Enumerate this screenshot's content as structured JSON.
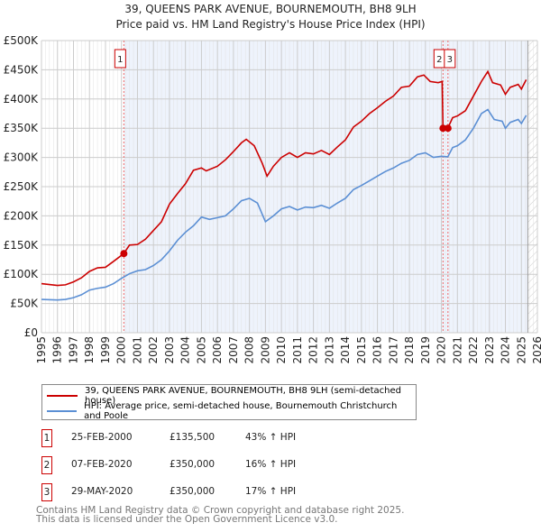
{
  "header": {
    "title": "39, QUEENS PARK AVENUE, BOURNEMOUTH, BH8 9LH",
    "subtitle": "Price paid vs. HM Land Registry's House Price Index (HPI)"
  },
  "chart_data": {
    "type": "line",
    "title": "39, QUEENS PARK AVENUE, BOURNEMOUTH, BH8 9LH",
    "subtitle": "Price paid vs. HM Land Registry's House Price Index (HPI)",
    "xlim": [
      1995,
      2026
    ],
    "ylim": [
      0,
      500
    ],
    "y_ticks": [
      {
        "v": 0,
        "label": "£0"
      },
      {
        "v": 50,
        "label": "£50K"
      },
      {
        "v": 100,
        "label": "£100K"
      },
      {
        "v": 150,
        "label": "£150K"
      },
      {
        "v": 200,
        "label": "£200K"
      },
      {
        "v": 250,
        "label": "£250K"
      },
      {
        "v": 300,
        "label": "£300K"
      },
      {
        "v": 350,
        "label": "£350K"
      },
      {
        "v": 400,
        "label": "£400K"
      },
      {
        "v": 450,
        "label": "£450K"
      },
      {
        "v": 500,
        "label": "£500K"
      }
    ],
    "x_ticks": [
      "1995",
      "1996",
      "1997",
      "1998",
      "1999",
      "2000",
      "2001",
      "2002",
      "2003",
      "2004",
      "2005",
      "2006",
      "2007",
      "2008",
      "2009",
      "2010",
      "2011",
      "2012",
      "2013",
      "2014",
      "2015",
      "2016",
      "2017",
      "2018",
      "2019",
      "2020",
      "2021",
      "2022",
      "2023",
      "2024",
      "2025",
      "2026"
    ],
    "grid": true,
    "series": [
      {
        "name": "39, QUEENS PARK AVENUE, BOURNEMOUTH, BH8 9LH (semi-detached house)",
        "color": "#cc0000",
        "x": [
          1995,
          1996,
          1996.5,
          1997,
          1997.5,
          1998,
          1998.5,
          1999,
          1999.5,
          2000.15,
          2000.5,
          2001,
          2001.5,
          2002,
          2002.5,
          2003,
          2003.5,
          2004,
          2004.5,
          2005,
          2005.3,
          2006,
          2006.5,
          2007,
          2007.5,
          2007.8,
          2008.3,
          2008.8,
          2009.1,
          2009.5,
          2010,
          2010.5,
          2011,
          2011.5,
          2012,
          2012.5,
          2013,
          2013.5,
          2014,
          2014.5,
          2015,
          2015.5,
          2016,
          2016.5,
          2017,
          2017.5,
          2018,
          2018.5,
          2018.9,
          2019.3,
          2019.8,
          2020.05,
          2020.1,
          2020.4,
          2020.7,
          2021,
          2021.5,
          2022,
          2022.5,
          2022.9,
          2023.2,
          2023.7,
          2024,
          2024.3,
          2024.8,
          2025,
          2025.3
        ],
        "y": [
          84,
          81,
          82,
          87,
          94,
          105,
          111,
          112,
          122,
          135.5,
          150,
          151,
          160,
          175,
          190,
          220,
          238,
          255,
          278,
          282,
          277,
          285,
          296,
          310,
          325,
          331,
          320,
          290,
          268,
          285,
          300,
          308,
          300,
          308,
          306,
          312,
          305,
          318,
          330,
          352,
          362,
          375,
          385,
          396,
          405,
          420,
          422,
          438,
          441,
          430,
          428,
          430,
          350,
          350,
          368,
          371,
          380,
          405,
          430,
          447,
          428,
          424,
          408,
          420,
          425,
          417,
          433
        ]
      },
      {
        "name": "HPI: Average price, semi-detached house, Bournemouth Christchurch and Poole",
        "color": "#5b8fd4",
        "x": [
          1995,
          1996,
          1996.5,
          1997,
          1997.5,
          1998,
          1998.5,
          1999,
          1999.5,
          2000,
          2000.5,
          2001,
          2001.5,
          2002,
          2002.5,
          2003,
          2003.5,
          2004,
          2004.5,
          2005,
          2005.5,
          2006,
          2006.5,
          2007,
          2007.5,
          2008,
          2008.5,
          2009,
          2009.5,
          2010,
          2010.5,
          2011,
          2011.5,
          2012,
          2012.5,
          2013,
          2013.5,
          2014,
          2014.5,
          2015,
          2015.5,
          2016,
          2016.5,
          2017,
          2017.5,
          2018,
          2018.5,
          2019,
          2019.5,
          2020,
          2020.4,
          2020.7,
          2021,
          2021.5,
          2022,
          2022.5,
          2022.9,
          2023.3,
          2023.8,
          2024,
          2024.3,
          2024.8,
          2025,
          2025.3
        ],
        "y": [
          57,
          56,
          57,
          60,
          65,
          73,
          76,
          78,
          84,
          93,
          101,
          106,
          108,
          115,
          125,
          140,
          158,
          172,
          183,
          198,
          194,
          197,
          200,
          212,
          226,
          230,
          222,
          190,
          200,
          212,
          216,
          210,
          215,
          214,
          218,
          213,
          222,
          230,
          245,
          252,
          260,
          268,
          276,
          282,
          290,
          295,
          305,
          308,
          300,
          302,
          301,
          317,
          320,
          330,
          350,
          375,
          382,
          365,
          362,
          350,
          360,
          365,
          358,
          372
        ]
      }
    ],
    "sales": [
      {
        "id": "1",
        "date": "25-FEB-2000",
        "price": "£135,500",
        "hpi": "43% ↑ HPI",
        "x": 2000.15,
        "y": 135.5
      },
      {
        "id": "2",
        "date": "07-FEB-2020",
        "price": "£350,000",
        "hpi": "16% ↑ HPI",
        "x": 2020.1,
        "y": 350
      },
      {
        "id": "3",
        "date": "29-MAY-2020",
        "price": "£350,000",
        "hpi": "17% ↑ HPI",
        "x": 2020.41,
        "y": 350
      }
    ],
    "legend_placement": "below"
  },
  "footer": {
    "line1": "Contains HM Land Registry data © Crown copyright and database right 2025.",
    "line2": "This data is licensed under the Open Government Licence v3.0."
  }
}
